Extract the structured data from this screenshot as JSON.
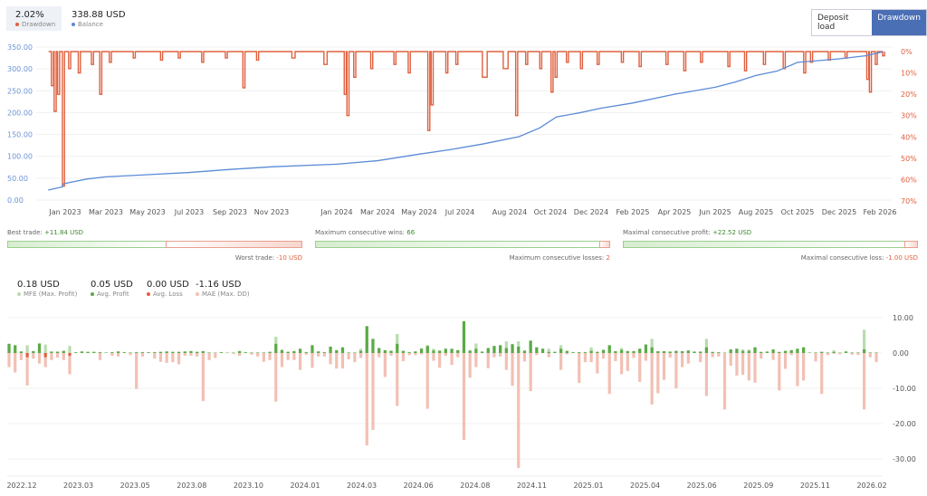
{
  "header": {
    "drawdown_value": "2.02%",
    "drawdown_label": "Drawdown",
    "balance_value": "338.88 USD",
    "balance_label": "Balance",
    "buttons": [
      {
        "label": "Deposit load",
        "active": false
      },
      {
        "label": "Drawdown",
        "active": true
      }
    ]
  },
  "colors": {
    "drawdown": "#e0603f",
    "balance": "#5b8bd6",
    "profit": "#5aaa46",
    "mfe": "#b8dcae",
    "loss": "#e0603f",
    "mae": "#f2c0b4",
    "active_button": "#4a6fb5"
  },
  "stats": [
    {
      "label": "Best trade:",
      "value": "+11.84 USD",
      "opp_label": "Worst trade:",
      "opp_value": "-10 USD",
      "share": 0.54
    },
    {
      "label": "Maximum consecutive wins:",
      "value": "66",
      "opp_label": "Maximum consecutive losses:",
      "opp_value": "2",
      "share": 0.97
    },
    {
      "label": "Maximal consecutive profit:",
      "value": "+22.52 USD",
      "opp_label": "Maximal consecutive loss:",
      "opp_value": "-1.00 USD",
      "share": 0.96
    }
  ],
  "summary": [
    {
      "value": "0.18 USD",
      "label": "MFE (Max. Profit)",
      "color": "#b8dcae"
    },
    {
      "value": "0.05 USD",
      "label": "Avg. Profit",
      "color": "#5aaa46"
    },
    {
      "value": "0.00 USD",
      "label": "Avg. Loss",
      "color": "#e0603f"
    },
    {
      "value": "-1.16 USD",
      "label": "MAE (Max. DD)",
      "color": "#f2c0b4"
    }
  ],
  "chart_data": [
    {
      "type": "line",
      "x_range": [
        "2022-12-01",
        "2026-02-15"
      ],
      "y_left": {
        "range": [
          0,
          350
        ],
        "ticks": [
          "0.00",
          "50.00",
          "100.00",
          "150.00",
          "200.00",
          "250.00",
          "300.00",
          "350.00"
        ]
      },
      "y_right": {
        "range": [
          0,
          70
        ],
        "inverted": true,
        "ticks": [
          "0%",
          "10%",
          "20%",
          "30%",
          "40%",
          "50%",
          "60%",
          "70%"
        ]
      },
      "x_ticks": [
        [
          "2023-01-01",
          "Jan 2023"
        ],
        [
          "2023-03-01",
          "Mar 2023"
        ],
        [
          "2023-05-01",
          "May 2023"
        ],
        [
          "2023-07-01",
          "Jul 2023"
        ],
        [
          "2023-09-01",
          "Sep 2023"
        ],
        [
          "2023-11-01",
          "Nov 2023"
        ],
        [
          "2024-01-01",
          "Jan 2024"
        ],
        [
          "2024-03-01",
          "Mar 2024"
        ],
        [
          "2024-05-01",
          "May 2024"
        ],
        [
          "2024-07-01",
          "Jul 2024"
        ],
        [
          "2024-08-01",
          "Aug 2024"
        ],
        [
          "2024-10-01",
          "Oct 2024"
        ],
        [
          "2024-12-01",
          "Dec 2024"
        ],
        [
          "2025-02-01",
          "Feb 2025"
        ],
        [
          "2025-04-01",
          "Apr 2025"
        ],
        [
          "2025-06-01",
          "Jun 2025"
        ],
        [
          "2025-08-01",
          "Aug 2025"
        ],
        [
          "2025-10-01",
          "Oct 2025"
        ],
        [
          "2025-12-01",
          "Dec 2025"
        ],
        [
          "2026-02-01",
          "Feb 2026"
        ]
      ],
      "balance": [
        [
          "2022-12-08",
          23
        ],
        [
          "2022-12-28",
          30
        ],
        [
          "2022-12-29",
          37
        ],
        [
          "2023-02-01",
          48
        ],
        [
          "2023-03-01",
          53
        ],
        [
          "2023-05-01",
          58
        ],
        [
          "2023-07-01",
          63
        ],
        [
          "2023-09-01",
          70
        ],
        [
          "2023-11-01",
          76
        ],
        [
          "2024-01-01",
          82
        ],
        [
          "2024-03-01",
          90
        ],
        [
          "2024-05-01",
          105
        ],
        [
          "2024-06-15",
          115
        ],
        [
          "2024-07-15",
          128
        ],
        [
          "2024-08-15",
          145
        ],
        [
          "2024-09-15",
          165
        ],
        [
          "2024-10-10",
          190
        ],
        [
          "2024-11-15",
          200
        ],
        [
          "2024-12-15",
          210
        ],
        [
          "2025-02-01",
          222
        ],
        [
          "2025-04-01",
          242
        ],
        [
          "2025-06-01",
          258
        ],
        [
          "2025-07-01",
          270
        ],
        [
          "2025-08-01",
          285
        ],
        [
          "2025-09-01",
          295
        ],
        [
          "2025-10-01",
          315
        ],
        [
          "2025-12-01",
          323
        ],
        [
          "2026-01-10",
          330
        ],
        [
          "2026-02-05",
          339
        ]
      ],
      "drawdown": [
        [
          "2022-12-12",
          16
        ],
        [
          "2022-12-16",
          28
        ],
        [
          "2022-12-21",
          20
        ],
        [
          "2022-12-28",
          63
        ],
        [
          "2023-01-06",
          8
        ],
        [
          "2023-01-20",
          10
        ],
        [
          "2023-02-08",
          6
        ],
        [
          "2023-02-20",
          20
        ],
        [
          "2023-03-06",
          5
        ],
        [
          "2023-04-10",
          3
        ],
        [
          "2023-05-20",
          4
        ],
        [
          "2023-06-15",
          3
        ],
        [
          "2023-07-20",
          5
        ],
        [
          "2023-08-25",
          3
        ],
        [
          "2023-09-20",
          17
        ],
        [
          "2023-10-10",
          4
        ],
        [
          "2023-11-20",
          3
        ],
        [
          "2023-12-20",
          6
        ],
        [
          "2024-01-12",
          20
        ],
        [
          "2024-01-16",
          30
        ],
        [
          "2024-01-26",
          12
        ],
        [
          "2024-02-20",
          8
        ],
        [
          "2024-03-25",
          6
        ],
        [
          "2024-04-15",
          10
        ],
        [
          "2024-05-14",
          37
        ],
        [
          "2024-05-19",
          25
        ],
        [
          "2024-06-10",
          10
        ],
        [
          "2024-06-25",
          6
        ],
        [
          "2024-07-15",
          12
        ],
        [
          "2024-07-28",
          8
        ],
        [
          "2024-08-10",
          30
        ],
        [
          "2024-08-25",
          6
        ],
        [
          "2024-09-15",
          8
        ],
        [
          "2024-10-02",
          19
        ],
        [
          "2024-10-08",
          12
        ],
        [
          "2024-10-25",
          5
        ],
        [
          "2024-11-15",
          8
        ],
        [
          "2024-12-10",
          6
        ],
        [
          "2025-01-15",
          5
        ],
        [
          "2025-02-10",
          7
        ],
        [
          "2025-03-20",
          6
        ],
        [
          "2025-04-15",
          9
        ],
        [
          "2025-05-10",
          5
        ],
        [
          "2025-06-20",
          7
        ],
        [
          "2025-07-15",
          9
        ],
        [
          "2025-08-12",
          6
        ],
        [
          "2025-09-10",
          8
        ],
        [
          "2025-10-10",
          10
        ],
        [
          "2025-10-20",
          5
        ],
        [
          "2025-11-15",
          4
        ],
        [
          "2025-12-10",
          3
        ],
        [
          "2026-01-12",
          13
        ],
        [
          "2026-01-16",
          19
        ],
        [
          "2026-01-25",
          6
        ],
        [
          "2026-02-05",
          2
        ]
      ]
    },
    {
      "type": "bar",
      "y_range": [
        -34,
        10
      ],
      "y_ticks": [
        "10.00",
        "0.00",
        "-10.00",
        "-20.00",
        "-30.00"
      ],
      "x_ticks": [
        "2022.12",
        "2023.03",
        "2023.05",
        "2023.08",
        "2023.10",
        "2024.01",
        "2024.03",
        "2024.06",
        "2024.08",
        "2024.11",
        "2025.01",
        "2025.04",
        "2025.06",
        "2025.09",
        "2025.11",
        "2026.02"
      ],
      "fields": [
        "mfe",
        "profit_loss",
        "mae"
      ],
      "bars": [
        [
          2.6,
          2.6,
          -4
        ],
        [
          2.2,
          2.2,
          -5.5
        ],
        [
          0.5,
          0.4,
          -2
        ],
        [
          2.2,
          -1.2,
          -9.2
        ],
        [
          0.6,
          0.5,
          -1.6
        ],
        [
          2.7,
          2.7,
          -3
        ],
        [
          2.4,
          -1.2,
          -4
        ],
        [
          0.4,
          0.4,
          -2
        ],
        [
          0.5,
          0.3,
          -1.3
        ],
        [
          0.6,
          0.6,
          -2
        ],
        [
          2,
          -0.8,
          -6
        ],
        [
          0.2,
          0.2,
          0
        ],
        [
          0.5,
          0.4,
          0
        ],
        [
          0.4,
          0.3,
          0
        ],
        [
          0.4,
          0.3,
          0
        ],
        [
          0.3,
          0.2,
          -2
        ],
        [
          0.2,
          0.1,
          0
        ],
        [
          0.3,
          0.2,
          -0.8
        ],
        [
          0.5,
          0.4,
          -1
        ],
        [
          0.3,
          0.2,
          0
        ],
        [
          0.2,
          0.1,
          -0.6
        ],
        [
          0.3,
          0.2,
          -10.2
        ],
        [
          0.3,
          0.2,
          -1
        ],
        [
          0.2,
          0.2,
          0
        ],
        [
          0.3,
          0.2,
          -1.6
        ],
        [
          0.4,
          0.3,
          -2.5
        ],
        [
          0.5,
          0.4,
          -2.8
        ],
        [
          0.4,
          0.3,
          -2.6
        ],
        [
          0.4,
          0.3,
          -3.2
        ],
        [
          0.5,
          0.4,
          -0.8
        ],
        [
          0.6,
          0.5,
          -0.8
        ],
        [
          0.4,
          0.3,
          -1
        ],
        [
          0.6,
          0.5,
          -13.6
        ],
        [
          0.2,
          0.1,
          -2
        ],
        [
          0.1,
          0.1,
          -1.4
        ],
        [
          0.3,
          0.2,
          0
        ],
        [
          0.1,
          0.1,
          0
        ],
        [
          0.1,
          0.1,
          -0.3
        ],
        [
          0.6,
          0.5,
          -0.8
        ],
        [
          0.3,
          0.2,
          0
        ],
        [
          0.2,
          0.1,
          -0.5
        ],
        [
          0.2,
          0.1,
          -1
        ],
        [
          0.2,
          0.1,
          -2.5
        ],
        [
          0.4,
          0.3,
          -2
        ],
        [
          4.6,
          2.6,
          -13.8
        ],
        [
          1,
          0.8,
          -4
        ],
        [
          0.4,
          0.3,
          -2
        ],
        [
          0.6,
          0.5,
          -2
        ],
        [
          1.2,
          1.2,
          -4.8
        ],
        [
          0.3,
          0.2,
          -0.5
        ],
        [
          2.2,
          2.2,
          -4.2
        ],
        [
          0.5,
          0.4,
          -1
        ],
        [
          0.3,
          0.2,
          -1
        ],
        [
          1.8,
          1.8,
          -3.2
        ],
        [
          0.8,
          0.8,
          -4.4
        ],
        [
          1.6,
          1.6,
          -4.4
        ],
        [
          0.2,
          0.1,
          -1.8
        ],
        [
          0.2,
          0.1,
          -2.6
        ],
        [
          1.2,
          0.6,
          -1.4
        ],
        [
          7.6,
          7.6,
          -26.2
        ],
        [
          4,
          4,
          -21.8
        ],
        [
          1.4,
          1.4,
          -1.2
        ],
        [
          0.8,
          0.8,
          -6.8
        ],
        [
          0.7,
          0.6,
          -0.8
        ],
        [
          5.4,
          2.6,
          -15
        ],
        [
          0.6,
          0.6,
          -2.3
        ],
        [
          0.3,
          0.2,
          -0.6
        ],
        [
          0.5,
          0.4,
          -0.6
        ],
        [
          1.4,
          1.2,
          -0.4
        ],
        [
          2.2,
          2,
          -15.8
        ],
        [
          1.2,
          0.7,
          -2.2
        ],
        [
          0.8,
          0.6,
          -4.2
        ],
        [
          1.2,
          1.2,
          -0.8
        ],
        [
          1.2,
          1.2,
          -3.4
        ],
        [
          0.8,
          0.8,
          -1.2
        ],
        [
          9,
          9,
          -24.6
        ],
        [
          0.7,
          0.7,
          -7
        ],
        [
          2.7,
          1.2,
          -4
        ],
        [
          0.4,
          0.4,
          0
        ],
        [
          1.4,
          1.4,
          -4.3
        ],
        [
          2,
          2,
          -1.2
        ],
        [
          2.2,
          2.2,
          -1
        ],
        [
          3.3,
          1.4,
          -4.8
        ],
        [
          2.5,
          2.5,
          -9.3
        ],
        [
          3.3,
          1.8,
          -32.6
        ],
        [
          0.8,
          0.6,
          -2.4
        ],
        [
          3.5,
          3.5,
          -10.8
        ],
        [
          1.6,
          1.6,
          -0.6
        ],
        [
          1.2,
          1.2,
          0
        ],
        [
          1.2,
          0.3,
          -1.2
        ],
        [
          0.4,
          0.3,
          0
        ],
        [
          2.2,
          1.2,
          -4.8
        ],
        [
          0.6,
          0.6,
          -0.4
        ],
        [
          0.3,
          0.2,
          0
        ],
        [
          0.3,
          0.2,
          -8.5
        ],
        [
          0.3,
          0.2,
          -2.6
        ],
        [
          1.6,
          0.6,
          -2.6
        ],
        [
          0.4,
          0.3,
          -5.8
        ],
        [
          0.9,
          0.9,
          -1.6
        ],
        [
          2.2,
          2.2,
          -11.6
        ],
        [
          0.5,
          0.5,
          -2.3
        ],
        [
          1.4,
          0.9,
          -6
        ],
        [
          0.6,
          0.5,
          -5.1
        ],
        [
          0.6,
          0.5,
          -1.4
        ],
        [
          1.2,
          1.2,
          -8.2
        ],
        [
          2.4,
          2.4,
          -2.2
        ],
        [
          4,
          1.6,
          -14.6
        ],
        [
          0.5,
          0.5,
          -11.4
        ],
        [
          0.5,
          0.5,
          -7.6
        ],
        [
          0.4,
          0.4,
          -1.3
        ],
        [
          0.6,
          0.6,
          -10
        ],
        [
          0.5,
          0.5,
          -4
        ],
        [
          0.7,
          0.7,
          -3
        ],
        [
          0.4,
          0.4,
          0
        ],
        [
          0.4,
          0.4,
          -2.6
        ],
        [
          4,
          1.6,
          -12.2
        ],
        [
          0.3,
          0.3,
          -1.2
        ],
        [
          0.2,
          0.2,
          -1
        ],
        [
          0.1,
          0.1,
          -16
        ],
        [
          1,
          1,
          -3.6
        ],
        [
          1.2,
          1.2,
          -6.4
        ],
        [
          1,
          0.6,
          -6.2
        ],
        [
          1,
          0.6,
          -7.8
        ],
        [
          1.6,
          1.6,
          -8.4
        ],
        [
          0.3,
          0.3,
          -1.6
        ],
        [
          0.4,
          0.4,
          0
        ],
        [
          1,
          1,
          -2
        ],
        [
          0.3,
          0.3,
          -10.6
        ],
        [
          0.6,
          0.6,
          -4.5
        ],
        [
          0.8,
          0.8,
          -0.6
        ],
        [
          1.2,
          1.2,
          -9.4
        ],
        [
          1.6,
          1.6,
          -7.8
        ],
        [
          0.2,
          0.1,
          0
        ],
        [
          0.2,
          0.1,
          -2.4
        ],
        [
          0.4,
          0.3,
          -11.6
        ],
        [
          0.2,
          0.1,
          -0.6
        ],
        [
          0.8,
          0.3,
          -0.2
        ],
        [
          0.1,
          0.1,
          -0.4
        ],
        [
          0.5,
          0.4,
          0
        ],
        [
          0.2,
          0.1,
          -0.5
        ],
        [
          0.2,
          0.1,
          -0.6
        ],
        [
          6.6,
          1,
          -16
        ],
        [
          0.2,
          0.1,
          -1.2
        ],
        [
          0.2,
          0.1,
          -2.6
        ]
      ]
    }
  ]
}
